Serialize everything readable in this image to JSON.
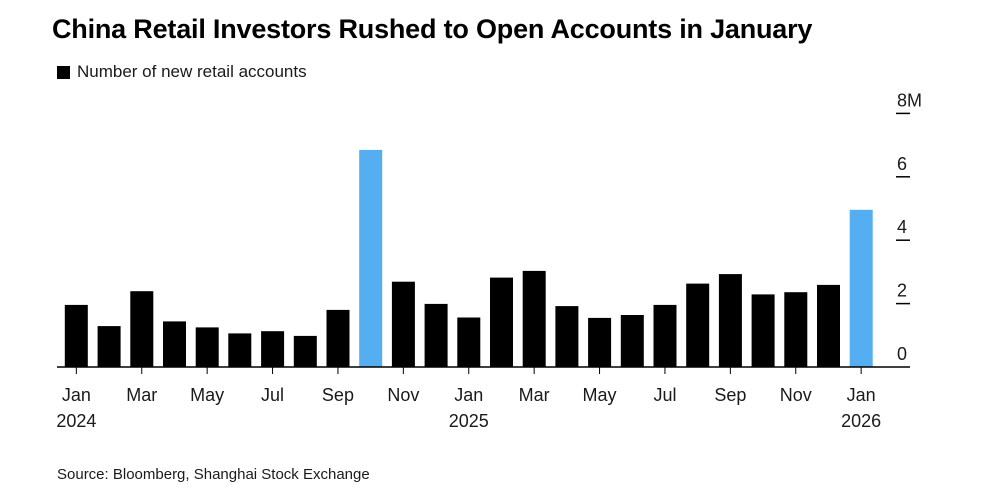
{
  "title": "China Retail Investors Rushed to Open Accounts in January",
  "source": "Source: Bloomberg, Shanghai Stock Exchange",
  "colors": {
    "default": "#000000",
    "highlight": "#55aef2"
  },
  "chart_data": {
    "type": "bar",
    "legend": [
      {
        "label": "Number of new retail accounts",
        "color": "#000000"
      }
    ],
    "series": [
      {
        "name": "Number of new retail accounts",
        "values": [
          1.96,
          1.29,
          2.39,
          1.44,
          1.25,
          1.06,
          1.13,
          0.98,
          1.8,
          6.85,
          2.69,
          1.99,
          1.56,
          2.82,
          3.03,
          1.92,
          1.55,
          1.64,
          1.96,
          2.63,
          2.93,
          2.29,
          2.36,
          2.59,
          4.96
        ]
      }
    ],
    "categories": [
      "Jan 2024",
      "Feb 2024",
      "Mar 2024",
      "Apr 2024",
      "May 2024",
      "Jun 2024",
      "Jul 2024",
      "Aug 2024",
      "Sep 2024",
      "Oct 2024",
      "Nov 2024",
      "Dec 2024",
      "Jan 2025",
      "Feb 2025",
      "Mar 2025",
      "Apr 2025",
      "May 2025",
      "Jun 2025",
      "Jul 2025",
      "Aug 2025",
      "Sep 2025",
      "Oct 2025",
      "Nov 2025",
      "Dec 2025",
      "Jan 2026"
    ],
    "highlight_indices": [
      9,
      24
    ],
    "x_tick_labels": [
      {
        "index": 0,
        "month": "Jan",
        "year": "2024"
      },
      {
        "index": 2,
        "month": "Mar",
        "year": ""
      },
      {
        "index": 4,
        "month": "May",
        "year": ""
      },
      {
        "index": 6,
        "month": "Jul",
        "year": ""
      },
      {
        "index": 8,
        "month": "Sep",
        "year": ""
      },
      {
        "index": 10,
        "month": "Nov",
        "year": ""
      },
      {
        "index": 12,
        "month": "Jan",
        "year": "2025"
      },
      {
        "index": 14,
        "month": "Mar",
        "year": ""
      },
      {
        "index": 16,
        "month": "May",
        "year": ""
      },
      {
        "index": 18,
        "month": "Jul",
        "year": ""
      },
      {
        "index": 20,
        "month": "Sep",
        "year": ""
      },
      {
        "index": 22,
        "month": "Nov",
        "year": ""
      },
      {
        "index": 24,
        "month": "Jan",
        "year": "2026"
      }
    ],
    "y_ticks": [
      {
        "value": 0,
        "label": "0"
      },
      {
        "value": 2,
        "label": "2"
      },
      {
        "value": 4,
        "label": "4"
      },
      {
        "value": 6,
        "label": "6"
      },
      {
        "value": 8,
        "label": "8M"
      }
    ],
    "ylim": [
      0,
      8
    ],
    "y_axis_side": "right",
    "grid": false,
    "legend_position": "top-left"
  }
}
